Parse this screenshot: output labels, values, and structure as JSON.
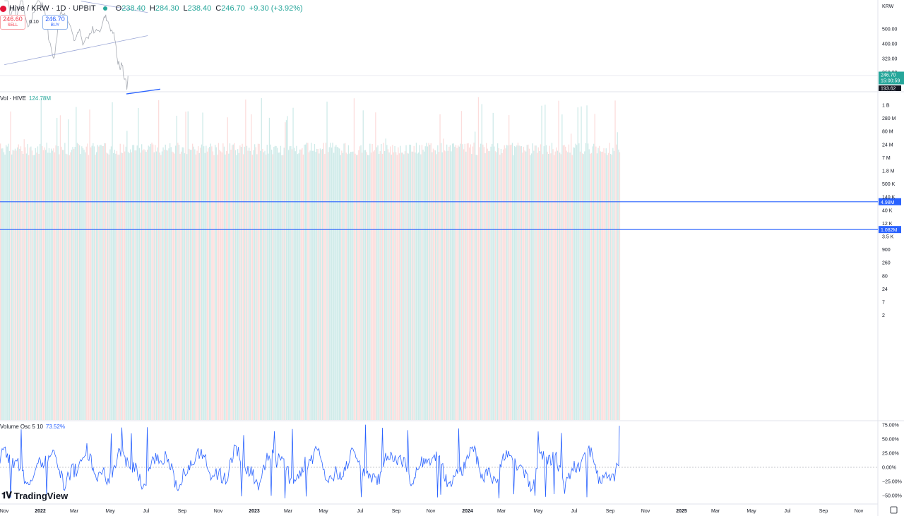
{
  "header": {
    "symbol": "Hive / KRW · 1D · UPBIT",
    "open_label": "O",
    "open": "238.40",
    "high_label": "H",
    "high": "284.30",
    "low_label": "L",
    "low": "238.40",
    "close_label": "C",
    "close": "246.70",
    "change": "+9.30 (+3.92%)"
  },
  "trade": {
    "sell_price": "246.60",
    "sell_label": "SELL",
    "spread": "0.10",
    "buy_price": "246.70",
    "buy_label": "BUY"
  },
  "currency": "KRW",
  "brand": "TradingView",
  "colors": {
    "up": "#26a69a",
    "down": "#ef5350",
    "line": "#2962ff",
    "trend": "#9aa6d6",
    "axis_badge": "#26a69a"
  },
  "chart_data": [
    {
      "type": "line",
      "name": "price",
      "scale": "log",
      "y_ticks": [
        "500.00",
        "400.00",
        "320.00",
        "260.00"
      ],
      "current_price": "246.70",
      "countdown": "15:00:59",
      "low_marker": "193.62",
      "series": [
        {
          "name": "Hive / KRW",
          "points": [
            [
              "2021-11-01",
              900
            ],
            [
              "2021-12-01",
              760
            ],
            [
              "2021-12-20",
              620
            ],
            [
              "2022-01-15",
              700
            ],
            [
              "2022-02-10",
              610
            ],
            [
              "2022-03-10",
              720
            ],
            [
              "2022-04-05",
              820
            ],
            [
              "2022-04-25",
              590
            ],
            [
              "2022-05-20",
              520
            ],
            [
              "2022-06-15",
              560
            ],
            [
              "2022-07-01",
              640
            ],
            [
              "2022-07-20",
              700
            ],
            [
              "2022-08-10",
              820
            ],
            [
              "2022-09-01",
              740
            ],
            [
              "2022-09-25",
              720
            ],
            [
              "2022-10-25",
              580
            ],
            [
              "2022-11-01",
              500
            ],
            [
              "2022-11-10",
              440
            ],
            [
              "2022-11-25",
              400
            ],
            [
              "2022-12-10",
              350
            ],
            [
              "2022-12-22",
              330
            ],
            [
              "2023-01-05",
              340
            ],
            [
              "2023-01-20",
              440
            ],
            [
              "2023-02-05",
              560
            ],
            [
              "2023-02-20",
              650
            ],
            [
              "2023-03-05",
              620
            ],
            [
              "2023-03-20",
              640
            ],
            [
              "2023-04-05",
              590
            ],
            [
              "2023-04-25",
              560
            ],
            [
              "2023-05-15",
              510
            ],
            [
              "2023-06-01",
              460
            ],
            [
              "2023-06-15",
              410
            ],
            [
              "2023-06-28",
              430
            ],
            [
              "2023-07-15",
              470
            ],
            [
              "2023-08-01",
              480
            ],
            [
              "2023-08-20",
              420
            ],
            [
              "2023-09-05",
              390
            ],
            [
              "2023-09-25",
              420
            ],
            [
              "2023-10-15",
              450
            ],
            [
              "2023-11-01",
              480
            ],
            [
              "2023-11-20",
              500
            ],
            [
              "2023-12-10",
              480
            ],
            [
              "2024-01-01",
              480
            ],
            [
              "2024-01-20",
              470
            ],
            [
              "2024-02-10",
              520
            ],
            [
              "2024-02-25",
              580
            ],
            [
              "2024-03-10",
              620
            ],
            [
              "2024-03-20",
              560
            ],
            [
              "2024-04-05",
              540
            ],
            [
              "2024-04-20",
              500
            ],
            [
              "2024-05-10",
              480
            ],
            [
              "2024-05-25",
              430
            ],
            [
              "2024-06-05",
              380
            ],
            [
              "2024-06-15",
              310
            ],
            [
              "2024-06-28",
              300
            ],
            [
              "2024-07-10",
              260
            ],
            [
              "2024-07-20",
              290
            ],
            [
              "2024-08-01",
              280
            ],
            [
              "2024-08-10",
              230
            ],
            [
              "2024-08-20",
              240
            ],
            [
              "2024-09-01",
              225
            ],
            [
              "2024-09-05",
              205
            ],
            [
              "2024-09-10",
              220
            ],
            [
              "2024-09-14",
              246.7
            ]
          ]
        }
      ],
      "trendlines": [
        {
          "name": "upper trendline",
          "from": [
            "2023-08-15",
            760
          ],
          "to": [
            "2025-03-01",
            640
          ]
        },
        {
          "name": "middle trendline",
          "from": [
            "2021-11-01",
            292
          ],
          "to": [
            "2025-03-01",
            452
          ]
        },
        {
          "name": "support trendline",
          "from": [
            "2024-09-01",
            188
          ],
          "to": [
            "2025-06-15",
            202
          ]
        }
      ],
      "x_ticks": [
        "Nov",
        "2022",
        "Mar",
        "May",
        "Jul",
        "Sep",
        "Nov",
        "2023",
        "Mar",
        "May",
        "Jul",
        "Sep",
        "Nov",
        "2024",
        "Mar",
        "May",
        "Jul",
        "Sep",
        "Nov",
        "2025",
        "Mar",
        "May",
        "Jul",
        "Sep",
        "Nov"
      ]
    },
    {
      "type": "bar",
      "name": "volume",
      "title": "Vol · HIVE",
      "value": "124.78M",
      "scale": "log",
      "y_ticks": [
        "1 B",
        "280 M",
        "80 M",
        "24 M",
        "7 M",
        "1.8 M",
        "500 K",
        "140 K",
        "40 K",
        "12 K",
        "3.5 K",
        "900",
        "260",
        "80",
        "24",
        "7",
        "2"
      ],
      "markers": [
        "4.98M",
        "1.082M"
      ],
      "marker_values": [
        4980000,
        1082000
      ]
    },
    {
      "type": "line",
      "name": "volume oscillator",
      "title": "Volume Osc 5 10",
      "value": "73.52%",
      "y_ticks": [
        "75.00%",
        "50.00%",
        "25.00%",
        "0.00%",
        "−25.00%",
        "−50.00%"
      ],
      "ylim": [
        -62,
        85
      ]
    }
  ]
}
